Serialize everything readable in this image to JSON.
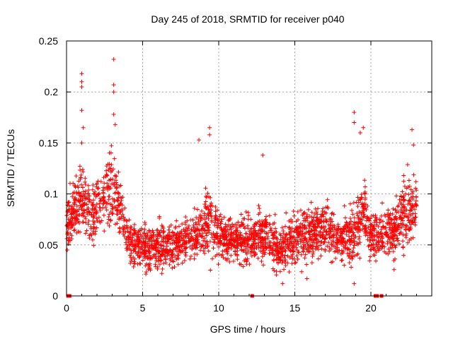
{
  "chart_data": {
    "type": "scatter",
    "title": "Day 245 of 2018, SRMTID for receiver p040",
    "xlabel": "GPS time / hours",
    "ylabel": "SRMTID / TECUs",
    "xlim": [
      0,
      24
    ],
    "ylim": [
      0,
      0.25
    ],
    "xticks": [
      0,
      5,
      10,
      15,
      20
    ],
    "xtick_labels": [
      "0",
      "5",
      "10",
      "15",
      "20"
    ],
    "yticks": [
      0,
      0.05,
      0.1,
      0.15,
      0.2,
      0.25
    ],
    "ytick_labels": [
      "0",
      "0.05",
      "0.1",
      "0.15",
      "0.2",
      "0.25"
    ],
    "grid": true,
    "marker": "plus",
    "color": "#ff0000",
    "series": [
      {
        "name": "SRMTID",
        "profile": [
          {
            "x": 0.0,
            "y": 0.07,
            "spread": 0.025
          },
          {
            "x": 0.5,
            "y": 0.085,
            "spread": 0.03
          },
          {
            "x": 1.0,
            "y": 0.095,
            "spread": 0.03
          },
          {
            "x": 1.5,
            "y": 0.08,
            "spread": 0.025
          },
          {
            "x": 2.0,
            "y": 0.085,
            "spread": 0.03
          },
          {
            "x": 2.5,
            "y": 0.1,
            "spread": 0.03
          },
          {
            "x": 3.0,
            "y": 0.11,
            "spread": 0.035
          },
          {
            "x": 3.5,
            "y": 0.09,
            "spread": 0.03
          },
          {
            "x": 4.0,
            "y": 0.055,
            "spread": 0.02
          },
          {
            "x": 5.0,
            "y": 0.048,
            "spread": 0.02
          },
          {
            "x": 6.0,
            "y": 0.048,
            "spread": 0.02
          },
          {
            "x": 7.0,
            "y": 0.05,
            "spread": 0.02
          },
          {
            "x": 8.0,
            "y": 0.055,
            "spread": 0.02
          },
          {
            "x": 9.0,
            "y": 0.065,
            "spread": 0.025
          },
          {
            "x": 9.5,
            "y": 0.075,
            "spread": 0.03
          },
          {
            "x": 10.0,
            "y": 0.058,
            "spread": 0.02
          },
          {
            "x": 11.0,
            "y": 0.055,
            "spread": 0.02
          },
          {
            "x": 12.0,
            "y": 0.055,
            "spread": 0.02
          },
          {
            "x": 13.0,
            "y": 0.06,
            "spread": 0.025
          },
          {
            "x": 14.0,
            "y": 0.045,
            "spread": 0.02
          },
          {
            "x": 15.0,
            "y": 0.06,
            "spread": 0.025
          },
          {
            "x": 16.0,
            "y": 0.06,
            "spread": 0.025
          },
          {
            "x": 17.0,
            "y": 0.068,
            "spread": 0.025
          },
          {
            "x": 18.0,
            "y": 0.055,
            "spread": 0.02
          },
          {
            "x": 19.0,
            "y": 0.06,
            "spread": 0.025
          },
          {
            "x": 19.5,
            "y": 0.085,
            "spread": 0.03
          },
          {
            "x": 20.0,
            "y": 0.06,
            "spread": 0.02
          },
          {
            "x": 21.0,
            "y": 0.06,
            "spread": 0.02
          },
          {
            "x": 21.5,
            "y": 0.065,
            "spread": 0.025
          },
          {
            "x": 22.0,
            "y": 0.075,
            "spread": 0.03
          },
          {
            "x": 22.5,
            "y": 0.085,
            "spread": 0.03
          },
          {
            "x": 23.0,
            "y": 0.09,
            "spread": 0.03
          }
        ],
        "outliers": [
          {
            "x": 1.0,
            "y": 0.218
          },
          {
            "x": 1.0,
            "y": 0.21
          },
          {
            "x": 1.0,
            "y": 0.205
          },
          {
            "x": 1.0,
            "y": 0.182
          },
          {
            "x": 1.1,
            "y": 0.165
          },
          {
            "x": 1.0,
            "y": 0.15
          },
          {
            "x": 3.1,
            "y": 0.232
          },
          {
            "x": 3.1,
            "y": 0.207
          },
          {
            "x": 3.1,
            "y": 0.2
          },
          {
            "x": 3.1,
            "y": 0.178
          },
          {
            "x": 3.2,
            "y": 0.168
          },
          {
            "x": 9.4,
            "y": 0.165
          },
          {
            "x": 9.4,
            "y": 0.158
          },
          {
            "x": 8.7,
            "y": 0.153
          },
          {
            "x": 12.9,
            "y": 0.138
          },
          {
            "x": 18.9,
            "y": 0.18
          },
          {
            "x": 18.9,
            "y": 0.17
          },
          {
            "x": 19.3,
            "y": 0.16
          },
          {
            "x": 19.5,
            "y": 0.165
          },
          {
            "x": 22.7,
            "y": 0.163
          },
          {
            "x": 22.8,
            "y": 0.148
          },
          {
            "x": 14.2,
            "y": 0.012
          },
          {
            "x": 15.8,
            "y": 0.017
          },
          {
            "x": 18.9,
            "y": 0.012
          }
        ],
        "zero_points": [
          0.1,
          0.2,
          12.2,
          20.3,
          20.4,
          20.7
        ]
      }
    ]
  }
}
